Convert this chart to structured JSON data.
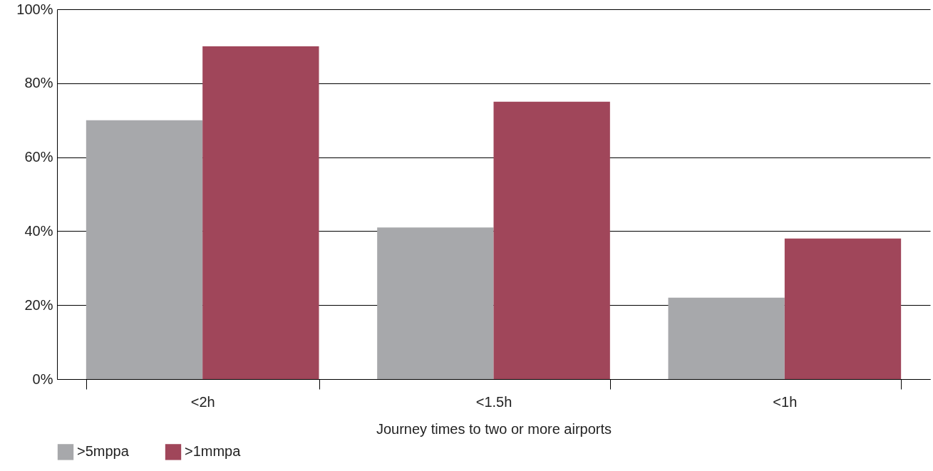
{
  "chart_data": {
    "type": "bar",
    "xlabel": "Journey times to two or more airports",
    "categories": [
      "<2h",
      "<1.5h",
      "<1h"
    ],
    "series": [
      {
        "name": ">5mppa",
        "color": "#a7a8ab",
        "values": [
          70,
          41,
          22
        ]
      },
      {
        "name": ">1mmpa",
        "color": "#a0465a",
        "values": [
          90,
          75,
          38
        ]
      }
    ],
    "ylim": [
      0,
      100
    ],
    "yticks": [
      {
        "value": 0,
        "label": "0%"
      },
      {
        "value": 20,
        "label": "20%"
      },
      {
        "value": 40,
        "label": "40%"
      },
      {
        "value": 60,
        "label": "60%"
      },
      {
        "value": 80,
        "label": "80%"
      },
      {
        "value": 100,
        "label": "100%"
      }
    ],
    "grid": "y",
    "legend": "bottom"
  }
}
